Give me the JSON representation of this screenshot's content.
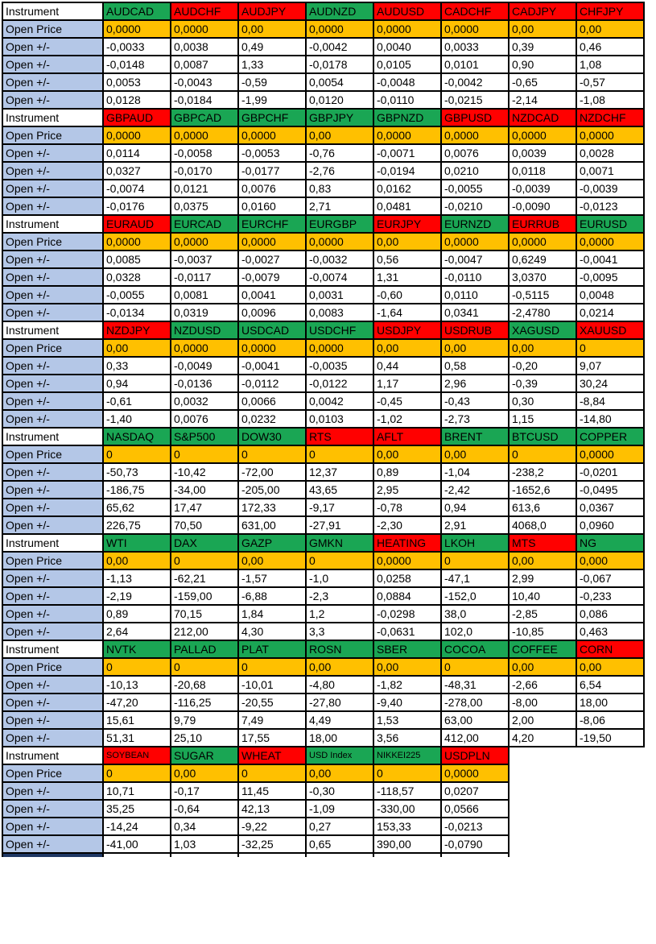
{
  "table": {
    "row_labels": {
      "instrument": "Instrument",
      "open_price": "Open Price",
      "open_change": "Open +/-"
    },
    "colors": {
      "green": "#1AA654",
      "red": "#FF0000",
      "orange": "#FFC000",
      "label_blue": "#B4C7E7",
      "navy": "#1F3864",
      "border": "#000000"
    },
    "blocks": [
      {
        "instruments": [
          {
            "label": "AUDCAD",
            "color": "green"
          },
          {
            "label": "AUDCHF",
            "color": "red"
          },
          {
            "label": "AUDJPY",
            "color": "red"
          },
          {
            "label": "AUDNZD",
            "color": "green"
          },
          {
            "label": "AUDUSD",
            "color": "red"
          },
          {
            "label": "CADCHF",
            "color": "red"
          },
          {
            "label": "CADJPY",
            "color": "red"
          },
          {
            "label": "CHFJPY",
            "color": "red"
          }
        ],
        "open_price": [
          "0,0000",
          "0,0000",
          "0,00",
          "0,0000",
          "0,0000",
          "0,0000",
          "0,00",
          "0,00"
        ],
        "open_changes": [
          [
            "-0,0033",
            "0,0038",
            "0,49",
            "-0,0042",
            "0,0040",
            "0,0033",
            "0,39",
            "0,46"
          ],
          [
            "-0,0148",
            "0,0087",
            "1,33",
            "-0,0178",
            "0,0105",
            "0,0101",
            "0,90",
            "1,08"
          ],
          [
            "0,0053",
            "-0,0043",
            "-0,59",
            "0,0054",
            "-0,0048",
            "-0,0042",
            "-0,65",
            "-0,57"
          ],
          [
            "0,0128",
            "-0,0184",
            "-1,99",
            "0,0120",
            "-0,0110",
            "-0,0215",
            "-2,14",
            "-1,08"
          ]
        ]
      },
      {
        "instruments": [
          {
            "label": "GBPAUD",
            "color": "red"
          },
          {
            "label": "GBPCAD",
            "color": "green"
          },
          {
            "label": "GBPCHF",
            "color": "green"
          },
          {
            "label": "GBPJPY",
            "color": "green"
          },
          {
            "label": "GBPNZD",
            "color": "green"
          },
          {
            "label": "GBPUSD",
            "color": "red"
          },
          {
            "label": "NZDCAD",
            "color": "red"
          },
          {
            "label": "NZDCHF",
            "color": "red"
          }
        ],
        "open_price": [
          "0,0000",
          "0,0000",
          "0,0000",
          "0,00",
          "0,0000",
          "0,0000",
          "0,0000",
          "0,0000"
        ],
        "open_changes": [
          [
            "0,0114",
            "-0,0058",
            "-0,0053",
            "-0,76",
            "-0,0071",
            "0,0076",
            "0,0039",
            "0,0028"
          ],
          [
            "0,0327",
            "-0,0170",
            "-0,0177",
            "-2,76",
            "-0,0194",
            "0,0210",
            "0,0118",
            "0,0071"
          ],
          [
            "-0,0074",
            "0,0121",
            "0,0076",
            "0,83",
            "0,0162",
            "-0,0055",
            "-0,0039",
            "-0,0039"
          ],
          [
            "-0,0176",
            "0,0375",
            "0,0160",
            "2,71",
            "0,0481",
            "-0,0210",
            "-0,0090",
            "-0,0123"
          ]
        ]
      },
      {
        "instruments": [
          {
            "label": "EURAUD",
            "color": "red"
          },
          {
            "label": "EURCAD",
            "color": "green"
          },
          {
            "label": "EURCHF",
            "color": "green"
          },
          {
            "label": "EURGBP",
            "color": "green"
          },
          {
            "label": "EURJPY",
            "color": "red"
          },
          {
            "label": "EURNZD",
            "color": "green"
          },
          {
            "label": "EURRUB",
            "color": "red"
          },
          {
            "label": "EURUSD",
            "color": "green"
          }
        ],
        "open_price": [
          "0,0000",
          "0,0000",
          "0,0000",
          "0,0000",
          "0,00",
          "0,0000",
          "0,0000",
          "0,0000"
        ],
        "open_changes": [
          [
            "0,0085",
            "-0,0037",
            "-0,0027",
            "-0,0032",
            "0,56",
            "-0,0047",
            "0,6249",
            "-0,0041"
          ],
          [
            "0,0328",
            "-0,0117",
            "-0,0079",
            "-0,0074",
            "1,31",
            "-0,0110",
            "3,0370",
            "-0,0095"
          ],
          [
            "-0,0055",
            "0,0081",
            "0,0041",
            "0,0031",
            "-0,60",
            "0,0110",
            "-0,5115",
            "0,0048"
          ],
          [
            "-0,0134",
            "0,0319",
            "0,0096",
            "0,0083",
            "-1,64",
            "0,0341",
            "-2,4780",
            "0,0214"
          ]
        ]
      },
      {
        "instruments": [
          {
            "label": "NZDJPY",
            "color": "red"
          },
          {
            "label": "NZDUSD",
            "color": "green"
          },
          {
            "label": "USDCAD",
            "color": "green"
          },
          {
            "label": "USDCHF",
            "color": "green"
          },
          {
            "label": "USDJPY",
            "color": "red"
          },
          {
            "label": "USDRUB",
            "color": "red"
          },
          {
            "label": "XAGUSD",
            "color": "green"
          },
          {
            "label": "XAUUSD",
            "color": "red"
          }
        ],
        "open_price": [
          "0,00",
          "0,0000",
          "0,0000",
          "0,0000",
          "0,00",
          "0,00",
          "0,00",
          "0"
        ],
        "open_changes": [
          [
            "0,33",
            "-0,0049",
            "-0,0041",
            "-0,0035",
            "0,44",
            "0,58",
            "-0,20",
            "9,07"
          ],
          [
            "0,94",
            "-0,0136",
            "-0,0112",
            "-0,0122",
            "1,17",
            "2,96",
            "-0,39",
            "30,24"
          ],
          [
            "-0,61",
            "0,0032",
            "0,0066",
            "0,0042",
            "-0,45",
            "-0,43",
            "0,30",
            "-8,84"
          ],
          [
            "-1,40",
            "0,0076",
            "0,0232",
            "0,0103",
            "-1,02",
            "-2,73",
            "1,15",
            "-14,80"
          ]
        ]
      },
      {
        "instruments": [
          {
            "label": "NASDAQ",
            "color": "green"
          },
          {
            "label": "S&P500",
            "color": "green"
          },
          {
            "label": "DOW30",
            "color": "green"
          },
          {
            "label": "RTS",
            "color": "red"
          },
          {
            "label": "AFLT",
            "color": "red"
          },
          {
            "label": "BRENT",
            "color": "green"
          },
          {
            "label": "BTCUSD",
            "color": "green"
          },
          {
            "label": "COPPER",
            "color": "green"
          }
        ],
        "open_price": [
          "0",
          "0",
          "0",
          "0",
          "0,00",
          "0,00",
          "0",
          "0,0000"
        ],
        "open_changes": [
          [
            "-50,73",
            "-10,42",
            "-72,00",
            "12,37",
            "0,89",
            "-1,04",
            "-238,2",
            "-0,0201"
          ],
          [
            "-186,75",
            "-34,00",
            "-205,00",
            "43,65",
            "2,95",
            "-2,42",
            "-1652,6",
            "-0,0495"
          ],
          [
            "65,62",
            "17,47",
            "172,33",
            "-9,17",
            "-0,78",
            "0,94",
            "613,6",
            "0,0367"
          ],
          [
            "226,75",
            "70,50",
            "631,00",
            "-27,91",
            "-2,30",
            "2,91",
            "4068,0",
            "0,0960"
          ]
        ]
      },
      {
        "instruments": [
          {
            "label": "WTI",
            "color": "green"
          },
          {
            "label": "DAX",
            "color": "green"
          },
          {
            "label": "GAZP",
            "color": "green"
          },
          {
            "label": "GMKN",
            "color": "green"
          },
          {
            "label": "HEATING",
            "color": "red"
          },
          {
            "label": "LKOH",
            "color": "green"
          },
          {
            "label": "MTS",
            "color": "red"
          },
          {
            "label": "NG",
            "color": "green"
          }
        ],
        "open_price": [
          "0,00",
          "0",
          "0,00",
          "0",
          "0,0000",
          "0",
          "0,00",
          "0,000"
        ],
        "open_changes": [
          [
            "-1,13",
            "-62,21",
            "-1,57",
            "-1,0",
            "0,0258",
            "-47,1",
            "2,99",
            "-0,067"
          ],
          [
            "-2,19",
            "-159,00",
            "-6,88",
            "-2,3",
            "0,0884",
            "-152,0",
            "10,40",
            "-0,233"
          ],
          [
            "0,89",
            "70,15",
            "1,84",
            "1,2",
            "-0,0298",
            "38,0",
            "-2,85",
            "0,086"
          ],
          [
            "2,64",
            "212,00",
            "4,30",
            "3,3",
            "-0,0631",
            "102,0",
            "-10,85",
            "0,463"
          ]
        ]
      },
      {
        "instruments": [
          {
            "label": "NVTK",
            "color": "green"
          },
          {
            "label": "PALLAD",
            "color": "green"
          },
          {
            "label": "PLAT",
            "color": "green"
          },
          {
            "label": "ROSN",
            "color": "green"
          },
          {
            "label": "SBER",
            "color": "green"
          },
          {
            "label": "COCOA",
            "color": "green"
          },
          {
            "label": "COFFEE",
            "color": "green"
          },
          {
            "label": "CORN",
            "color": "red"
          }
        ],
        "open_price": [
          "0",
          "0",
          "0",
          "0,00",
          "0,00",
          "0",
          "0,00",
          "0,00"
        ],
        "open_changes": [
          [
            "-10,13",
            "-20,68",
            "-10,01",
            "-4,80",
            "-1,82",
            "-48,31",
            "-2,66",
            "6,54"
          ],
          [
            "-47,20",
            "-116,25",
            "-20,55",
            "-27,80",
            "-9,40",
            "-278,00",
            "-8,00",
            "18,00"
          ],
          [
            "15,61",
            "9,79",
            "7,49",
            "4,49",
            "1,53",
            "63,00",
            "2,00",
            "-8,06"
          ],
          [
            "51,31",
            "25,10",
            "17,55",
            "18,00",
            "3,56",
            "412,00",
            "4,20",
            "-19,50"
          ]
        ]
      },
      {
        "instruments": [
          {
            "label": "SOYBEAN",
            "color": "red",
            "small": true
          },
          {
            "label": "SUGAR",
            "color": "green"
          },
          {
            "label": "WHEAT",
            "color": "red"
          },
          {
            "label": "USD Index",
            "color": "green",
            "small": true
          },
          {
            "label": "NIKKEI225",
            "color": "green",
            "small": true
          },
          {
            "label": "USDPLN",
            "color": "red"
          }
        ],
        "open_price": [
          "0",
          "0,00",
          "0",
          "0,00",
          "0",
          "0,0000"
        ],
        "open_changes": [
          [
            "10,71",
            "-0,17",
            "11,45",
            "-0,30",
            "-118,57",
            "0,0207"
          ],
          [
            "35,25",
            "-0,64",
            "42,13",
            "-1,09",
            "-330,00",
            "0,0566"
          ],
          [
            "-14,24",
            "0,34",
            "-9,22",
            "0,27",
            "153,33",
            "-0,0213"
          ],
          [
            "-41,00",
            "1,03",
            "-32,25",
            "0,65",
            "390,00",
            "-0,0790"
          ]
        ]
      }
    ],
    "partial_bottom_row": {
      "columns": 6,
      "label_color": "navy"
    }
  }
}
